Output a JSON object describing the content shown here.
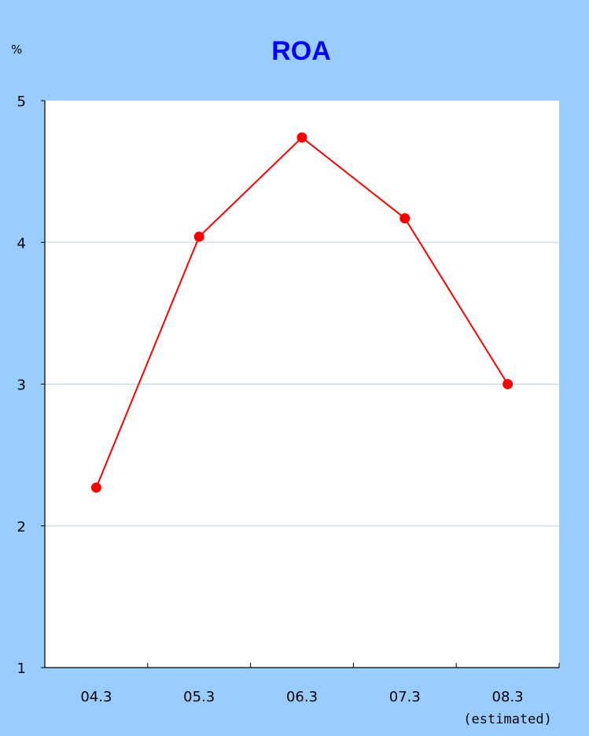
{
  "chart_data": {
    "type": "line",
    "title": "ROA",
    "unit_label": "%",
    "categories": [
      "04.3",
      "05.3",
      "06.3",
      "07.3",
      "08.3"
    ],
    "category_note": {
      "index": 4,
      "text": "(estimated)"
    },
    "values": [
      2.27,
      4.04,
      4.74,
      4.17,
      3.0
    ],
    "ylim": [
      1,
      5
    ],
    "yticks": [
      "1",
      "2",
      "3",
      "4",
      "5"
    ],
    "grid": true,
    "legend": "none",
    "colors": {
      "background": "#99ccff",
      "plot_area": "#ffffff",
      "series": "#ff0000",
      "gridline": "#b7d3e6",
      "title": "#0000ff"
    }
  }
}
